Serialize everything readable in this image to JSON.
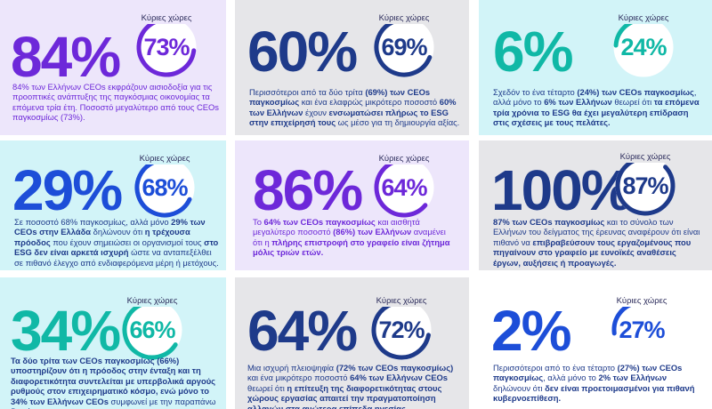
{
  "badge_label": "Κύριες χώρες",
  "colors": {
    "purple": "#6d28d9",
    "blue": "#1d4ed8",
    "teal": "#10b8a6",
    "navy": "#1e3a8a",
    "purple_bg": "#ede6fb",
    "grey_bg": "#e6e6e9",
    "cyan_bg": "#d2f4f8",
    "white_bg": "#ffffff"
  },
  "cards": [
    {
      "big": "84%",
      "badge": "73%",
      "desc_parts": [
        {
          "t": "84% των Ελλήνων CEOs εκφράζουν αισιοδοξία για τις προοπτικές ανάπτυξης της παγκόσμιας οικονομίας τα επόμενα τρία έτη. Ποσοστό μεγαλύτερο από τους CEOs παγκοσμίως (73%).",
          "b": false
        }
      ]
    },
    {
      "big": "60%",
      "badge": "69%",
      "desc_parts": [
        {
          "t": "Περισσότεροι από τα δύο τρίτα ",
          "b": false
        },
        {
          "t": "(69%) των CEOs παγκοσμίως",
          "b": true
        },
        {
          "t": " και ένα ελαφρώς μικρότερο ποσοστό ",
          "b": false
        },
        {
          "t": "60% των Ελλήνων",
          "b": true
        },
        {
          "t": " έχουν ",
          "b": false
        },
        {
          "t": "ενσωματώσει πλήρως το ESG στην επιχείρησή τους",
          "b": true
        },
        {
          "t": " ως μέσο για τη δημιουργία αξίας.",
          "b": false
        }
      ]
    },
    {
      "big": "6%",
      "badge": "24%",
      "desc_parts": [
        {
          "t": "Σχεδόν το ένα τέταρτο ",
          "b": false
        },
        {
          "t": "(24%) των CEOs παγκοσμίως",
          "b": true
        },
        {
          "t": ", αλλά μόνο το ",
          "b": false
        },
        {
          "t": "6% των Ελλήνων",
          "b": true
        },
        {
          "t": " θεωρεί ότι ",
          "b": false
        },
        {
          "t": "τα επόμενα τρία χρόνια το ESG θα έχει μεγαλύτερη επίδραση στις σχέσεις με τους πελάτες.",
          "b": true
        }
      ]
    },
    {
      "big": "29%",
      "badge": "68%",
      "desc_parts": [
        {
          "t": "Σε ποσοστό 68% παγκοσμίως, αλλά μόνο ",
          "b": false
        },
        {
          "t": "29% των CEOs στην Ελλάδα",
          "b": true
        },
        {
          "t": " δηλώνουν ότι ",
          "b": false
        },
        {
          "t": "η τρέχουσα πρόοδος",
          "b": true
        },
        {
          "t": " που έχουν σημειώσει οι οργανισμοί τους ",
          "b": false
        },
        {
          "t": "στο ESG δεν είναι αρκετά ισχυρή",
          "b": true
        },
        {
          "t": " ώστε να ανταπεξέλθει σε πιθανό έλεγχο από ενδιαφερόμενα μέρη ή μετόχους.",
          "b": false
        }
      ]
    },
    {
      "big": "86%",
      "badge": "64%",
      "desc_parts": [
        {
          "t": "Το ",
          "b": false
        },
        {
          "t": "64% των CEOs παγκοσμίως",
          "b": true
        },
        {
          "t": " και αισθητά μεγαλύτερο ποσοστό ",
          "b": false
        },
        {
          "t": "(86%) των Ελλήνων",
          "b": true
        },
        {
          "t": " αναμένει ότι η ",
          "b": false
        },
        {
          "t": "πλήρης επιστροφή στο γραφείο είναι ζήτημα μόλις τριών ετών.",
          "b": true
        }
      ]
    },
    {
      "big": "100%",
      "badge": "87%",
      "desc_parts": [
        {
          "t": "87% των CEOs παγκοσμίως",
          "b": true
        },
        {
          "t": " και το σύνολο των Ελλήνων του δείγματος της έρευνας αναφέρουν ότι είναι πιθανό να ",
          "b": false
        },
        {
          "t": "επιβραβεύσουν τους εργαζομένους που πηγαίνουν στο γραφείο με ευνοϊκές αναθέσεις έργων, αυξήσεις ή προαγωγές.",
          "b": true
        }
      ]
    },
    {
      "big": "34%",
      "badge": "66%",
      "desc_parts": [
        {
          "t": "Τα δύο τρίτα των CEOs παγκοσμίως (66%) υποστηρίζουν ότι η πρόοδος στην ένταξη και τη διαφορετικότητα συντελείται με υπερβολικά αργούς ρυθμούς στον επιχειρηματικό κόσμο, ενώ μόνο το ",
          "b": true
        },
        {
          "t": "34% των Ελλήνων CEOs",
          "b": true
        },
        {
          "t": " συμφωνεί με την παραπάνω διαπίστωση.",
          "b": false
        }
      ]
    },
    {
      "big": "64%",
      "badge": "72%",
      "desc_parts": [
        {
          "t": "Μια ισχυρή πλειοψηφία ",
          "b": false
        },
        {
          "t": "(72% των CEOs παγκοσμίως)",
          "b": true
        },
        {
          "t": " και ένα μικρότερο ποσοστό ",
          "b": false
        },
        {
          "t": "64% των Ελλήνων CEOs",
          "b": true
        },
        {
          "t": " θεωρεί ότι ",
          "b": false
        },
        {
          "t": "η επίτευξη της διαφορετικότητας στους χώρους εργασίας απαιτεί την πραγματοποίηση αλλαγών στα ανώτερα επίπεδα ηγεσίας.",
          "b": true
        }
      ]
    },
    {
      "big": "2%",
      "badge": "27%",
      "desc_parts": [
        {
          "t": "Περισσότεροι από το ένα τέταρτο ",
          "b": false
        },
        {
          "t": "(27%) των CEOs παγκοσμίως",
          "b": true
        },
        {
          "t": ", αλλά μόνο το ",
          "b": false
        },
        {
          "t": "2% των Ελλήνων",
          "b": true
        },
        {
          "t": " δηλώνουν ότι ",
          "b": false
        },
        {
          "t": "δεν είναι προετοιμασμένοι για πιθανή κυβερνοεπίθεση.",
          "b": true
        }
      ]
    }
  ]
}
